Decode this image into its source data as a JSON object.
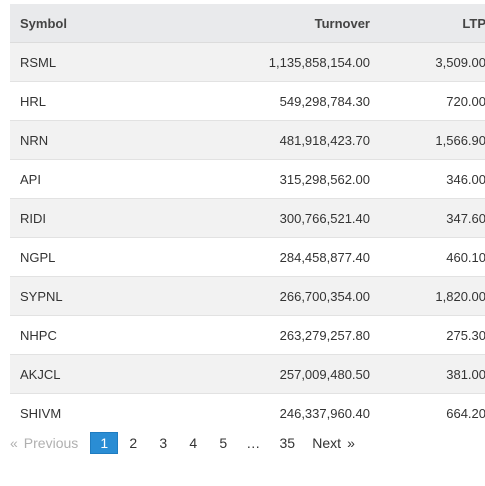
{
  "table": {
    "headers": {
      "symbol": "Symbol",
      "turnover": "Turnover",
      "ltp": "LTP"
    },
    "rows": [
      {
        "symbol": "RSML",
        "turnover": "1,135,858,154.00",
        "ltp": "3,509.00"
      },
      {
        "symbol": "HRL",
        "turnover": "549,298,784.30",
        "ltp": "720.00"
      },
      {
        "symbol": "NRN",
        "turnover": "481,918,423.70",
        "ltp": "1,566.90"
      },
      {
        "symbol": "API",
        "turnover": "315,298,562.00",
        "ltp": "346.00"
      },
      {
        "symbol": "RIDI",
        "turnover": "300,766,521.40",
        "ltp": "347.60"
      },
      {
        "symbol": "NGPL",
        "turnover": "284,458,877.40",
        "ltp": "460.10"
      },
      {
        "symbol": "SYPNL",
        "turnover": "266,700,354.00",
        "ltp": "1,820.00"
      },
      {
        "symbol": "NHPC",
        "turnover": "263,279,257.80",
        "ltp": "275.30"
      },
      {
        "symbol": "AKJCL",
        "turnover": "257,009,480.50",
        "ltp": "381.00"
      },
      {
        "symbol": "SHIVM",
        "turnover": "246,337,960.40",
        "ltp": "664.20"
      }
    ]
  },
  "pagination": {
    "prev_glyph": "«",
    "prev_label": "Previous",
    "pages": [
      "1",
      "2",
      "3",
      "4",
      "5"
    ],
    "current_page": "1",
    "ellipsis": "…",
    "last_page": "35",
    "next_label": "Next",
    "next_glyph": "»"
  },
  "colors": {
    "accent": "#2a8dd4",
    "header_bg": "#e9eaec",
    "stripe_bg": "#f2f2f2"
  }
}
